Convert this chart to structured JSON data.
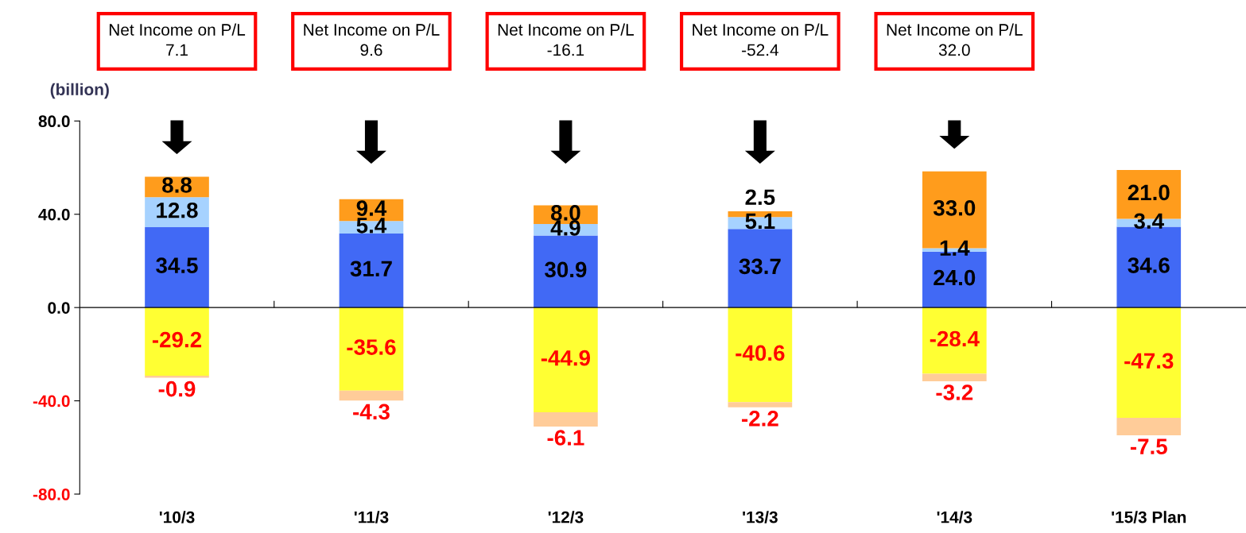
{
  "chart_data": {
    "type": "bar",
    "stacked": true,
    "ylabel": "(billion)",
    "categories": [
      "'10/3",
      "'11/3",
      "'12/3",
      "'13/3",
      "'14/3",
      "'15/3 Plan"
    ],
    "series": [
      {
        "color": "#4169f5",
        "values": [
          34.5,
          31.7,
          30.9,
          33.7,
          24.0,
          34.6
        ],
        "value_labels": [
          "34.5",
          "31.7",
          "30.9",
          "33.7",
          "24.0",
          "34.6"
        ]
      },
      {
        "color": "#a6d2ff",
        "values": [
          12.8,
          5.4,
          4.9,
          5.1,
          1.4,
          3.4
        ],
        "value_labels": [
          "12.8",
          "5.4",
          "4.9",
          "5.1",
          "1.4",
          "3.4"
        ]
      },
      {
        "color": "#ff9c1c",
        "values": [
          8.8,
          9.4,
          8.0,
          2.5,
          33.0,
          21.0
        ],
        "value_labels": [
          "8.8",
          "9.4",
          "8.0",
          "2.5",
          "33.0",
          "21.0"
        ]
      },
      {
        "color": "#ffff33",
        "values": [
          -29.2,
          -35.6,
          -44.9,
          -40.6,
          -28.4,
          -47.3
        ],
        "value_labels": [
          "-29.2",
          "-35.6",
          "-44.9",
          "-40.6",
          "-28.4",
          "-47.3"
        ]
      },
      {
        "color": "#ffcc99",
        "values": [
          -0.9,
          -4.3,
          -6.1,
          -2.2,
          -3.2,
          -7.5
        ],
        "value_labels": [
          "-0.9",
          "-4.3",
          "-6.1",
          "-2.2",
          "-3.2",
          "-7.5"
        ]
      }
    ],
    "ylim": [
      -80,
      80
    ],
    "yticks": [
      {
        "value": -80,
        "label": "-80.0"
      },
      {
        "value": -40,
        "label": "-40.0"
      },
      {
        "value": 0,
        "label": "0.0"
      },
      {
        "value": 40,
        "label": "40.0"
      },
      {
        "value": 80,
        "label": "80.0"
      }
    ],
    "ref_lines": [
      {
        "axis": "y",
        "value": 0,
        "color": "#000000"
      }
    ],
    "annotations": [
      "Net Income on P/L\n7.1",
      "Net Income on P/L\n9.6",
      "Net Income on P/L\n-16.1",
      "Net Income on P/L\n-52.4",
      "Net Income on P/L\n32.0"
    ]
  }
}
